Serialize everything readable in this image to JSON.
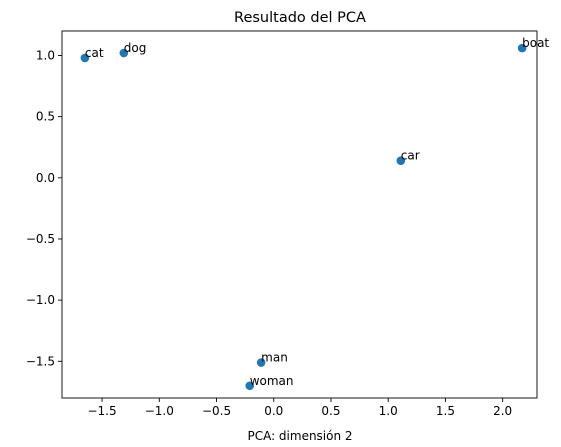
{
  "chart_data": {
    "type": "scatter",
    "title": "Resultado del PCA",
    "xlabel": "PCA: dimensión 2",
    "ylabel": "",
    "xlim": [
      -1.85,
      2.3
    ],
    "ylim": [
      -1.8,
      1.2
    ],
    "x_ticks": [
      -1.5,
      -1.0,
      -0.5,
      0.0,
      0.5,
      1.0,
      1.5,
      2.0
    ],
    "x_tick_labels": [
      "−1.5",
      "−1.0",
      "−0.5",
      "0.0",
      "0.5",
      "1.0",
      "1.5",
      "2.0"
    ],
    "y_ticks": [
      -1.5,
      -1.0,
      -0.5,
      0.0,
      0.5,
      1.0
    ],
    "y_tick_labels": [
      "−1.5",
      "−1.0",
      "−0.5",
      "0.0",
      "0.5",
      "1.0"
    ],
    "grid": false,
    "marker_color": "#1f77b4",
    "points": [
      {
        "label": "cat",
        "x": -1.65,
        "y": 0.98
      },
      {
        "label": "dog",
        "x": -1.31,
        "y": 1.02
      },
      {
        "label": "boat",
        "x": 2.17,
        "y": 1.06
      },
      {
        "label": "car",
        "x": 1.11,
        "y": 0.14
      },
      {
        "label": "man",
        "x": -0.11,
        "y": -1.51
      },
      {
        "label": "woman",
        "x": -0.21,
        "y": -1.7
      }
    ]
  }
}
